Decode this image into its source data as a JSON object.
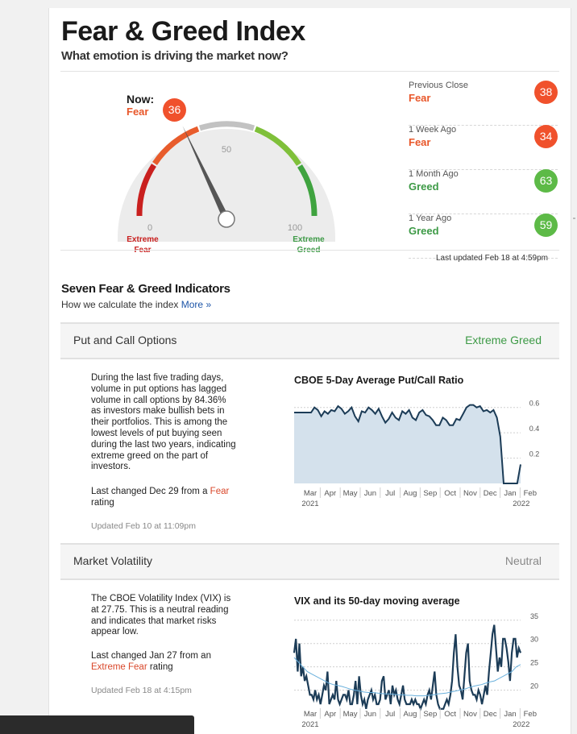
{
  "header": {
    "title": "Fear & Greed Index",
    "subtitle": "What emotion is driving the market now?"
  },
  "gauge": {
    "now_label": "Now:",
    "now_rating": "Fear",
    "now_value": "36",
    "value": 36,
    "tick_0": "0",
    "tick_50": "50",
    "tick_100": "100",
    "extreme_fear": [
      "Extreme",
      "Fear"
    ],
    "extreme_greed": [
      "Extreme",
      "Greed"
    ]
  },
  "history": [
    {
      "label": "Previous Close",
      "rating": "Fear",
      "value": "38",
      "color": "#f0512c"
    },
    {
      "label": "1 Week Ago",
      "rating": "Fear",
      "value": "34",
      "color": "#f0512c"
    },
    {
      "label": "1 Month Ago",
      "rating": "Greed",
      "value": "63",
      "color": "#5dba47"
    },
    {
      "label": "1 Year Ago",
      "rating": "Greed",
      "value": "59",
      "color": "#5dba47"
    }
  ],
  "last_updated": "Last updated Feb 18 at 4:59pm",
  "indicators_section": {
    "title": "Seven Fear & Greed Indicators",
    "subtitle": "How we calculate the index",
    "more_link": "More »"
  },
  "indicators": [
    {
      "name": "Put and Call Options",
      "rating": "Extreme Greed",
      "rating_color": "#3d9a46",
      "description": "During the last five trading days, volume in put options has lagged volume in call options by 84.36% as investors make bullish bets in their portfolios. This is among the lowest levels of put buying seen during the last two years, indicating extreme greed on the part of investors.",
      "changed_prefix": "Last changed Dec 29 from a ",
      "changed_rating": "Fear",
      "changed_suffix": " rating",
      "updated": "Updated Feb 10 at 11:09pm"
    },
    {
      "name": "Market Volatility",
      "rating": "Neutral",
      "rating_color": "#888888",
      "description": "The CBOE Volatility Index (VIX) is at 27.75. This is a neutral reading and indicates that market risks appear low.",
      "changed_prefix": "Last changed Jan 27 from an ",
      "changed_rating": "Extreme Fear",
      "changed_suffix": " rating",
      "updated": "Updated Feb 18 at 4:15pm"
    }
  ],
  "chart_data": [
    {
      "type": "area",
      "title": "CBOE 5-Day Average Put/Call Ratio",
      "months": [
        "Mar",
        "Apr",
        "May",
        "Jun",
        "Jul",
        "Aug",
        "Sep",
        "Oct",
        "Nov",
        "Dec",
        "Jan",
        "Feb"
      ],
      "year_labels": [
        "2021",
        "2022"
      ],
      "yticks": [
        "0.6",
        "0.4",
        "0.2"
      ],
      "ylim": [
        0.0,
        0.7
      ],
      "series": [
        {
          "values": [
            0.56,
            0.56,
            0.56,
            0.56,
            0.56,
            0.56,
            0.6,
            0.58,
            0.53,
            0.57,
            0.55,
            0.58,
            0.57,
            0.61,
            0.59,
            0.55,
            0.57,
            0.6,
            0.53,
            0.49,
            0.57,
            0.56,
            0.6,
            0.58,
            0.55,
            0.59,
            0.53,
            0.48,
            0.51,
            0.56,
            0.52,
            0.5,
            0.57,
            0.55,
            0.58,
            0.52,
            0.5,
            0.56,
            0.58,
            0.54,
            0.53,
            0.5,
            0.46,
            0.46,
            0.52,
            0.5,
            0.46,
            0.46,
            0.51,
            0.5,
            0.55,
            0.6,
            0.62,
            0.62,
            0.6,
            0.61,
            0.57,
            0.58,
            0.56,
            0.58,
            0.52,
            0.37,
            0.0,
            0.0,
            0.0,
            0.0,
            0.0,
            0.15
          ]
        }
      ]
    },
    {
      "type": "line",
      "title": "VIX and its 50-day moving average",
      "months": [
        "Mar",
        "Apr",
        "May",
        "Jun",
        "Jul",
        "Aug",
        "Sep",
        "Oct",
        "Nov",
        "Dec",
        "Jan",
        "Feb"
      ],
      "year_labels": [
        "2021",
        "2022"
      ],
      "yticks": [
        "35",
        "30",
        "25",
        "20"
      ],
      "ylim": [
        17,
        36
      ],
      "series": [
        {
          "values": [
            28,
            31,
            24,
            30,
            23,
            25,
            22,
            23,
            21,
            19,
            19,
            18,
            20,
            18,
            19,
            17,
            19,
            21,
            20,
            24,
            17,
            18,
            19,
            18,
            22,
            18,
            17,
            18,
            19,
            19,
            18,
            20,
            17,
            17,
            19,
            22,
            17,
            23,
            19,
            17,
            18,
            16,
            18,
            19,
            20,
            18,
            19,
            17,
            17,
            18,
            22,
            23,
            18,
            19,
            20,
            17,
            21,
            19,
            20,
            18,
            17,
            19,
            21,
            18,
            17,
            17,
            17,
            18,
            17,
            18,
            17,
            17,
            16,
            17,
            18,
            17,
            19,
            20,
            18,
            21,
            24,
            19,
            17,
            16,
            16,
            16,
            17,
            18,
            17,
            19,
            22,
            28,
            32,
            25,
            21,
            20,
            18,
            23,
            28,
            30,
            22,
            20,
            19,
            19,
            18,
            20,
            19,
            17,
            19,
            21,
            19,
            24,
            28,
            32,
            34,
            29,
            24,
            27,
            25,
            31,
            31,
            29,
            26,
            22,
            28,
            31,
            31,
            27,
            29,
            28
          ]
        },
        {
          "values": [
            27,
            26,
            25,
            24,
            23.5,
            23,
            22.5,
            22,
            21.5,
            21.2,
            21,
            20.8,
            20.5,
            20.2,
            20,
            19.8,
            19.6,
            19.5,
            19.5,
            19.4,
            19.3,
            19.2,
            19.2,
            19.1,
            19,
            19,
            18.9,
            18.9,
            18.8,
            18.8,
            18.8,
            18.9,
            19,
            19.2,
            19.3,
            19.4,
            19.6,
            19.8,
            20,
            20.2,
            20.5,
            20.8,
            21,
            21.2,
            21.5,
            21.8,
            22,
            22.5,
            23,
            23.5,
            24,
            25,
            25.5
          ]
        }
      ]
    }
  ]
}
